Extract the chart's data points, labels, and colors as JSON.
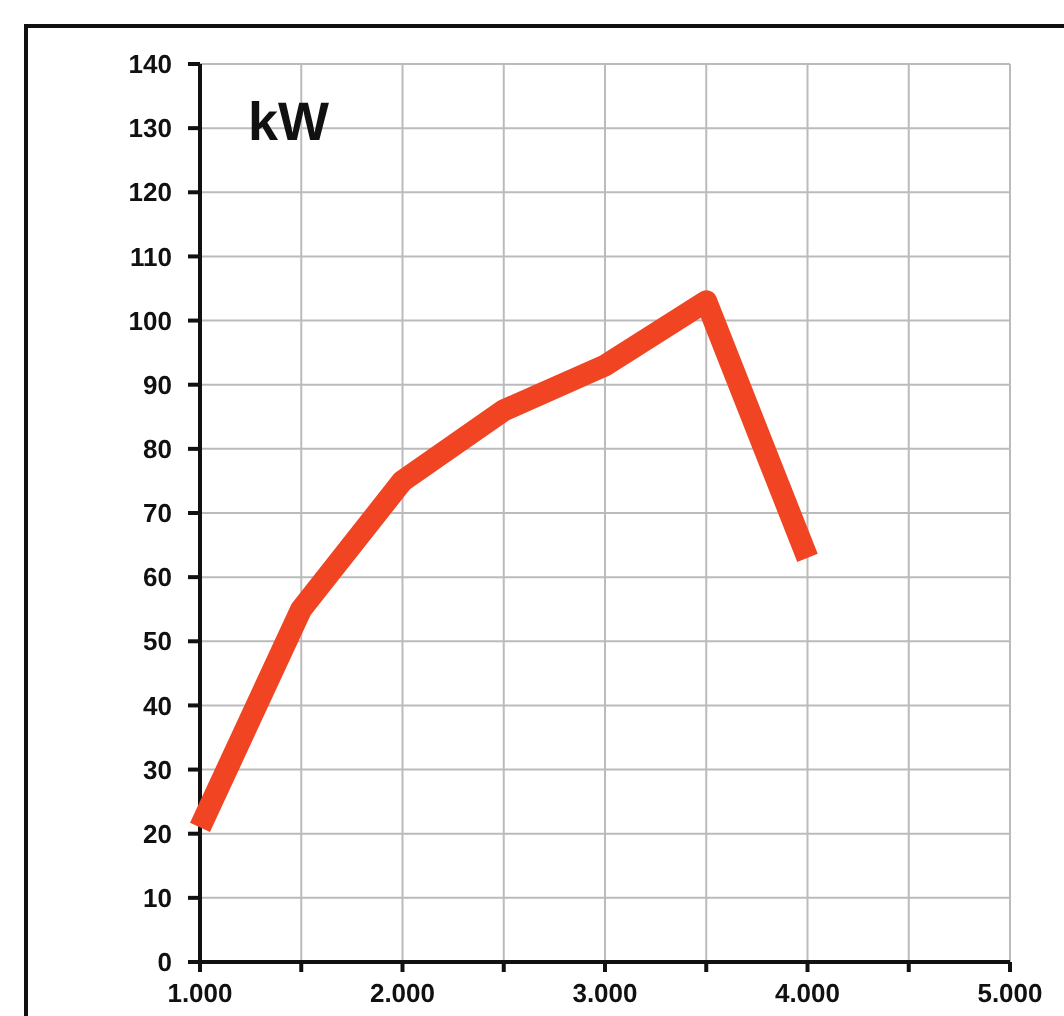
{
  "chart_data": {
    "type": "line",
    "annotations": [
      "kW"
    ],
    "x": [
      1000,
      1500,
      2000,
      2500,
      3000,
      3500,
      4000
    ],
    "series": [
      {
        "color": "#f04423",
        "values": [
          21,
          55,
          75,
          86,
          93,
          103,
          63
        ]
      }
    ],
    "xlim": [
      1000,
      5000
    ],
    "xticks": [
      {
        "value": 1000,
        "label": "1.000"
      },
      {
        "value": 1500,
        "label": null
      },
      {
        "value": 2000,
        "label": "2.000"
      },
      {
        "value": 2500,
        "label": null
      },
      {
        "value": 3000,
        "label": "3.000"
      },
      {
        "value": 3500,
        "label": null
      },
      {
        "value": 4000,
        "label": "4.000"
      },
      {
        "value": 4500,
        "label": null
      },
      {
        "value": 5000,
        "label": "5.000"
      }
    ],
    "ylim": [
      0,
      140
    ],
    "yticks": [
      0,
      10,
      20,
      30,
      40,
      50,
      60,
      70,
      80,
      90,
      100,
      110,
      120,
      130,
      140
    ],
    "grid": true,
    "marker": "none",
    "line_style": "solid"
  }
}
